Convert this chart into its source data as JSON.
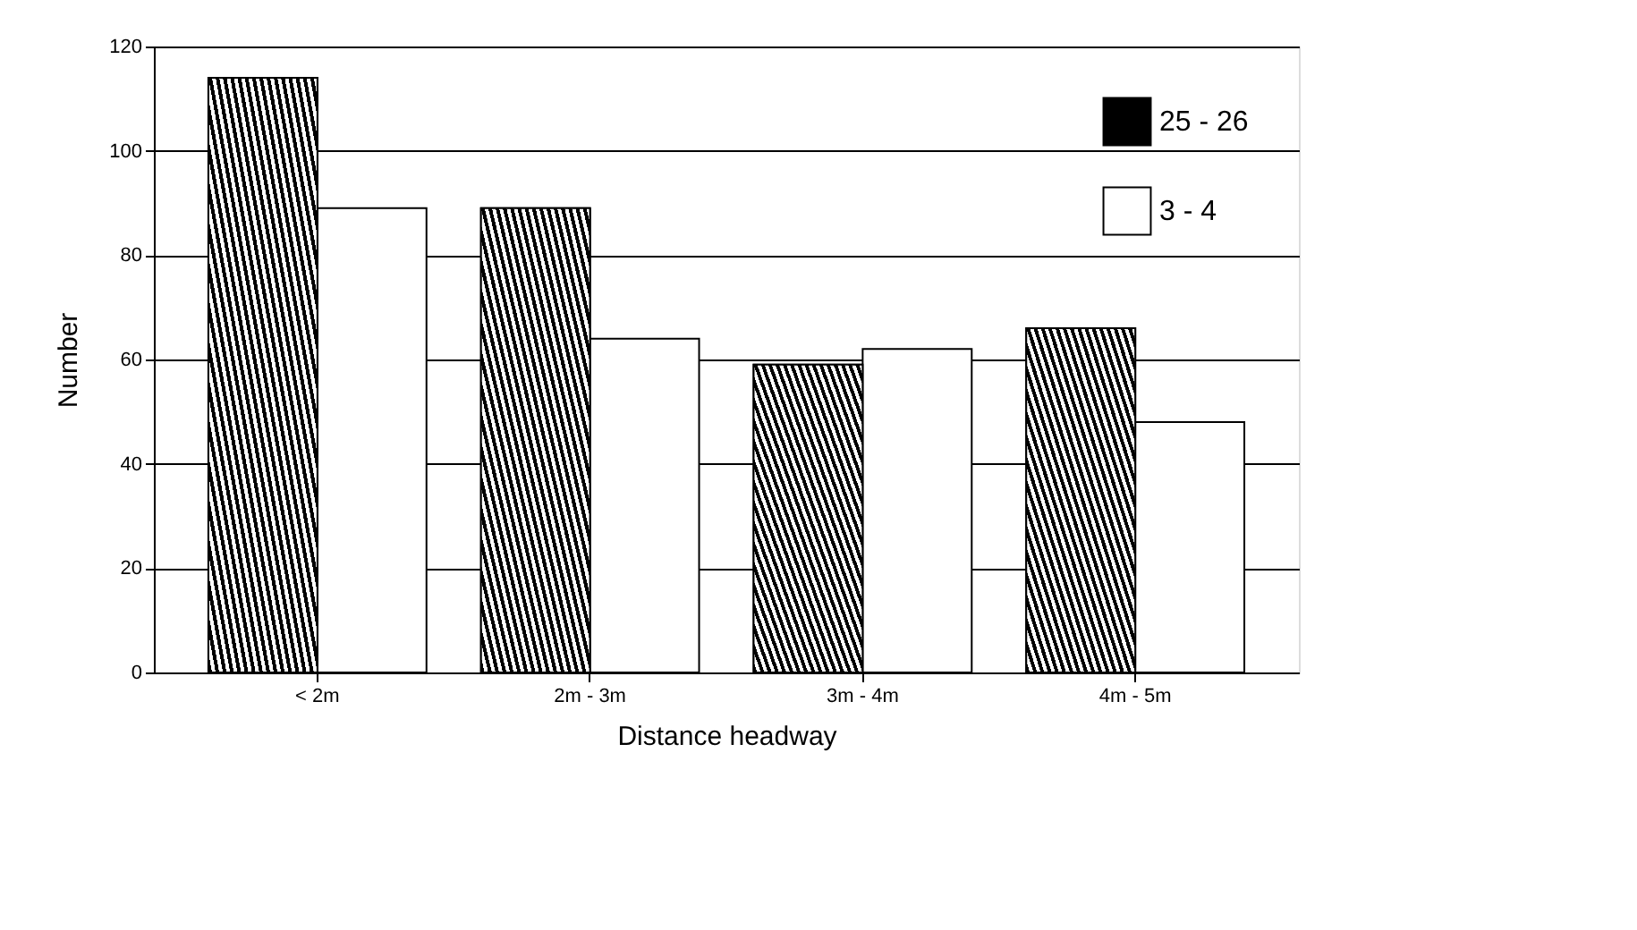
{
  "chart_data": {
    "type": "bar",
    "xlabel": "Distance headway",
    "ylabel": "Number",
    "categories": [
      "< 2m",
      "2m - 3m",
      "3m - 4m",
      "4m - 5m"
    ],
    "series": [
      {
        "name": "25 - 26",
        "color": "#000000",
        "values": [
          114,
          89,
          59,
          66
        ]
      },
      {
        "name": "3 - 4",
        "color": "#ffffff",
        "values": [
          89,
          64,
          62,
          48
        ]
      }
    ],
    "ylim": [
      0,
      120
    ],
    "yticks": [
      0,
      20,
      40,
      60,
      80,
      100,
      120
    ],
    "grid": "y",
    "legend": "top right"
  }
}
